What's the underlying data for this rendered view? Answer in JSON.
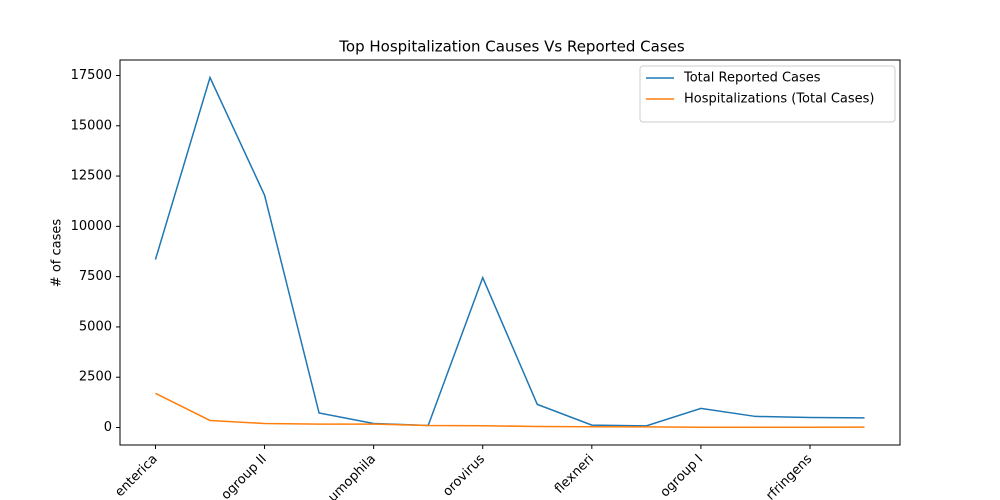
{
  "chart_data": {
    "type": "line",
    "title": "Top Hospitalization Causes Vs Reported Cases",
    "ylabel": "# of cases",
    "categories": [
      "enterica",
      null,
      "ogroup II",
      null,
      "umophila",
      null,
      "orovirus",
      null,
      "flexneri",
      null,
      "ogroup I",
      null,
      "rfringens",
      null
    ],
    "series": [
      {
        "name": "Total Reported Cases",
        "color": "#1f77b4",
        "values": [
          8350,
          17400,
          11550,
          720,
          200,
          100,
          7450,
          1150,
          120,
          80,
          950,
          550,
          500,
          480
        ]
      },
      {
        "name": "Hospitalizations (Total Cases)",
        "color": "#ff7f0e",
        "values": [
          1700,
          350,
          200,
          170,
          170,
          100,
          90,
          50,
          40,
          30,
          10,
          10,
          10,
          20
        ]
      }
    ],
    "ylim": [
      -870,
      18270
    ],
    "yticks": [
      0,
      2500,
      5000,
      7500,
      10000,
      12500,
      15000,
      17500
    ],
    "legend": "upper right",
    "grid": false
  }
}
